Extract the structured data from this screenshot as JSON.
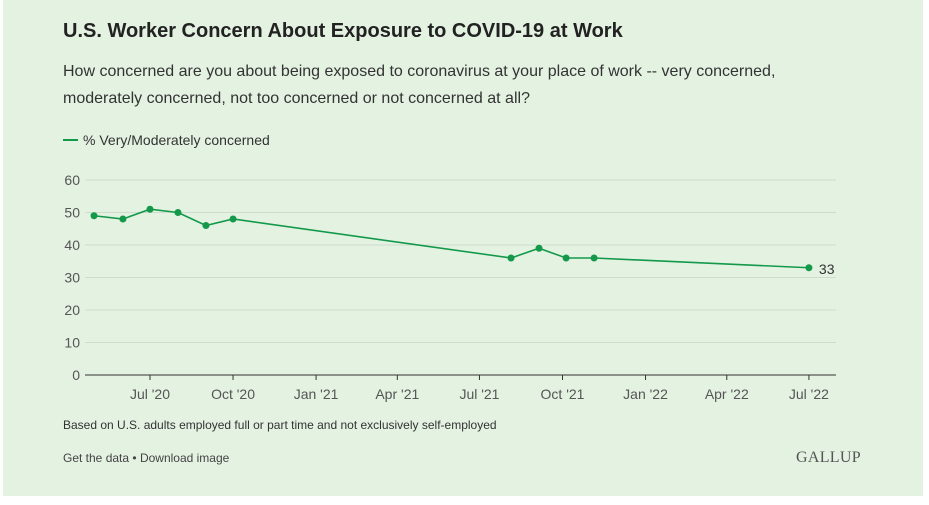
{
  "header": {
    "title": "U.S. Worker Concern About Exposure to COVID-19 at Work",
    "subtitle": "How concerned are you about being exposed to coronavirus at your place of work -- very concerned, moderately concerned, not too concerned or not concerned at all?"
  },
  "footer": {
    "note": "Based on U.S. adults employed full or part time and not exclusively self-employed",
    "get_data": "Get the data",
    "separator": "•",
    "download": "Download image",
    "brand": "GALLUP"
  },
  "chart_data": {
    "type": "line",
    "grid": true,
    "legend_position": "top-left",
    "ylim": [
      0,
      60
    ],
    "y_ticks": [
      0,
      10,
      20,
      30,
      40,
      50,
      60
    ],
    "x_range": [
      "2020-04-20",
      "2022-07-31"
    ],
    "x_ticks": [
      {
        "date": "2020-07-01",
        "label": "Jul '20"
      },
      {
        "date": "2020-10-01",
        "label": "Oct '20"
      },
      {
        "date": "2021-01-01",
        "label": "Jan '21"
      },
      {
        "date": "2021-04-01",
        "label": "Apr '21"
      },
      {
        "date": "2021-07-01",
        "label": "Jul '21"
      },
      {
        "date": "2021-10-01",
        "label": "Oct '21"
      },
      {
        "date": "2022-01-01",
        "label": "Jan '22"
      },
      {
        "date": "2022-04-01",
        "label": "Apr '22"
      },
      {
        "date": "2022-07-01",
        "label": "Jul '22"
      }
    ],
    "series": [
      {
        "name": "% Very/Moderately concerned",
        "color": "#14994b",
        "points": [
          {
            "x": "2020-04-30",
            "y": 49
          },
          {
            "x": "2020-06-01",
            "y": 48
          },
          {
            "x": "2020-07-01",
            "y": 51
          },
          {
            "x": "2020-08-01",
            "y": 50
          },
          {
            "x": "2020-09-01",
            "y": 46
          },
          {
            "x": "2020-10-01",
            "y": 48
          },
          {
            "x": "2021-08-05",
            "y": 36
          },
          {
            "x": "2021-09-05",
            "y": 39
          },
          {
            "x": "2021-10-05",
            "y": 36
          },
          {
            "x": "2021-11-05",
            "y": 36
          },
          {
            "x": "2022-07-01",
            "y": 33
          }
        ],
        "end_label": "33"
      }
    ]
  }
}
